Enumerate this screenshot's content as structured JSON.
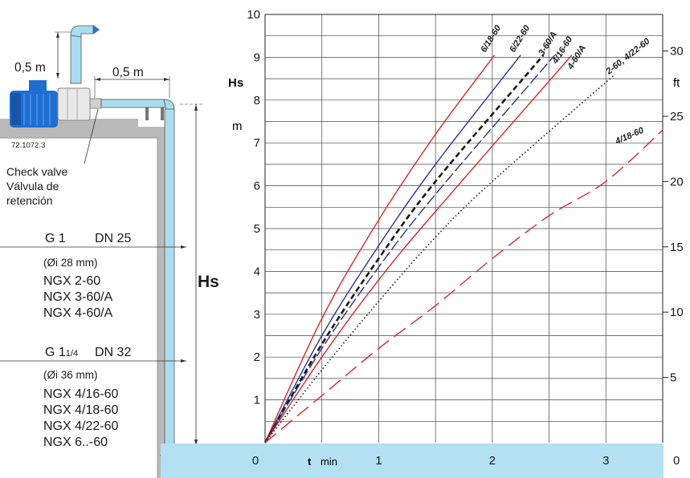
{
  "installation": {
    "height_label": "0,5 m",
    "length_label": "0,5 m",
    "code": "72.1072.3",
    "valve_en": "Check valve",
    "valve_es": "Válvula de",
    "valve_es2": "retención",
    "hs_label": "Hs"
  },
  "pipes": [
    {
      "g": "G 1",
      "dn": "DN 25",
      "di": "(Øi 28 mm)",
      "models": [
        "NGX 2-60",
        "NGX 3-60/A",
        "NGX 4-60/A"
      ]
    },
    {
      "g": "G 1",
      "g_sub": "1/4",
      "dn": "DN 32",
      "di": "(Øi 36 mm)",
      "models": [
        "NGX 4/16-60",
        "NGX 4/18-60",
        "NGX 4/22-60",
        "NGX 6..-60"
      ]
    }
  ],
  "chart_data": {
    "type": "line",
    "xlabel": "t",
    "xunit": "min",
    "ylabel": "Hs",
    "yunit": "m",
    "y2unit": "ft",
    "xlim": [
      0,
      3.5
    ],
    "ylim": [
      0,
      10
    ],
    "y2lim": [
      0,
      32.8
    ],
    "x_ticks": [
      "0",
      "1",
      "2",
      "3"
    ],
    "y_ticks": [
      "1",
      "2",
      "3",
      "4",
      "5",
      "6",
      "7",
      "8",
      "9",
      "10"
    ],
    "y2_ticks": [
      "0",
      "5",
      "10",
      "15",
      "20",
      "25",
      "30"
    ],
    "series": [
      {
        "name": "6/18-60",
        "color": "#d42a2a",
        "style": "solid",
        "points": [
          [
            0,
            0
          ],
          [
            0.5,
            2.9
          ],
          [
            1,
            5.2
          ],
          [
            1.5,
            7.2
          ],
          [
            2.02,
            9.05
          ]
        ]
      },
      {
        "name": "6/22-60",
        "color": "#2b3590",
        "style": "solid",
        "points": [
          [
            0,
            0
          ],
          [
            0.5,
            2.5
          ],
          [
            1,
            4.6
          ],
          [
            1.5,
            6.5
          ],
          [
            2.25,
            9.05
          ]
        ]
      },
      {
        "name": "3-60/A",
        "color": "#1a1a1a",
        "style": "dashed-bold",
        "points": [
          [
            0,
            0
          ],
          [
            0.5,
            2.3
          ],
          [
            1,
            4.3
          ],
          [
            1.5,
            6.1
          ],
          [
            2.45,
            9.05
          ]
        ]
      },
      {
        "name": "4/16-60",
        "color": "#2b3590",
        "style": "dashed",
        "points": [
          [
            0,
            0
          ],
          [
            0.5,
            2.2
          ],
          [
            1,
            4.1
          ],
          [
            1.5,
            5.8
          ],
          [
            2.55,
            9.05
          ]
        ]
      },
      {
        "name": "4-60/A",
        "color": "#d42a2a",
        "style": "solid",
        "points": [
          [
            0,
            0
          ],
          [
            0.5,
            2.0
          ],
          [
            1,
            3.8
          ],
          [
            1.5,
            5.4
          ],
          [
            2.7,
            9.05
          ]
        ]
      },
      {
        "name": "2-60, 4/22-60",
        "color": "#1a1a1a",
        "style": "dotted",
        "points": [
          [
            0,
            0
          ],
          [
            0.5,
            1.7
          ],
          [
            1,
            3.3
          ],
          [
            1.5,
            4.8
          ],
          [
            2,
            6.1
          ],
          [
            3.08,
            8.6
          ]
        ]
      },
      {
        "name": "4/18-60",
        "color": "#d42a2a",
        "style": "long-dash",
        "points": [
          [
            0,
            0
          ],
          [
            0.5,
            1.1
          ],
          [
            1,
            2.2
          ],
          [
            1.5,
            3.2
          ],
          [
            2,
            4.3
          ],
          [
            2.5,
            5.3
          ],
          [
            3,
            6.1
          ],
          [
            3.5,
            7.3
          ]
        ]
      }
    ]
  }
}
